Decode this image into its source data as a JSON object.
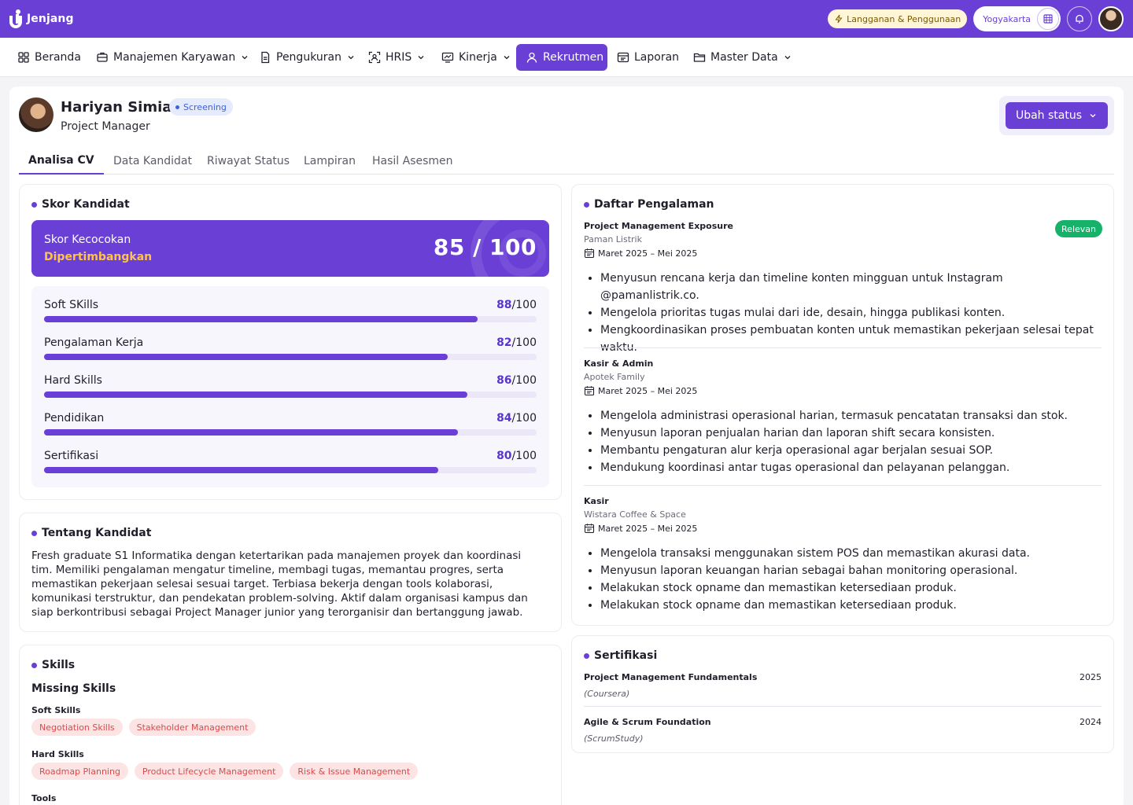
{
  "app": {
    "brand": "Jenjang"
  },
  "topbar": {
    "subscription_label": "Langganan & Penggunaan",
    "location_label": "Yogyakarta"
  },
  "nav": [
    {
      "label": "Beranda",
      "icon": "home-grid-icon",
      "dropdown": false,
      "active": false
    },
    {
      "label": "Manajemen Karyawan",
      "icon": "briefcase-icon",
      "dropdown": true,
      "active": false
    },
    {
      "label": "Pengukuran",
      "icon": "document-icon",
      "dropdown": true,
      "active": false
    },
    {
      "label": "HRIS",
      "icon": "scan-user-icon",
      "dropdown": true,
      "active": false
    },
    {
      "label": "Kinerja",
      "icon": "performance-icon",
      "dropdown": true,
      "active": false
    },
    {
      "label": "Rekrutmen",
      "icon": "user-icon",
      "dropdown": false,
      "active": true
    },
    {
      "label": "Laporan",
      "icon": "report-icon",
      "dropdown": false,
      "active": false
    },
    {
      "label": "Master Data",
      "icon": "folder-icon",
      "dropdown": true,
      "active": false
    }
  ],
  "candidate": {
    "name": "Hariyan Simiati",
    "status": "Screening",
    "role": "Project Manager",
    "change_status_label": "Ubah status"
  },
  "tabs": [
    "Analisa CV",
    "Data Kandidat",
    "Riwayat Status",
    "Lampiran",
    "Hasil Asesmen"
  ],
  "score": {
    "title": "Skor Kandidat",
    "match_label": "Skor Kecocokan",
    "verdict": "Dipertimbangkan",
    "value_text": "85 / 100",
    "metrics": [
      {
        "label": "Soft SKills",
        "score": "88",
        "max": "/100",
        "value": 88
      },
      {
        "label": "Pengalaman Kerja",
        "score": "82",
        "max": "/100",
        "value": 82
      },
      {
        "label": "Hard Skills",
        "score": "86",
        "max": "/100",
        "value": 86
      },
      {
        "label": "Pendidikan",
        "score": "84",
        "max": "/100",
        "value": 84
      },
      {
        "label": "Sertifikasi",
        "score": "80",
        "max": "/100",
        "value": 80
      }
    ]
  },
  "about": {
    "title": "Tentang Kandidat",
    "text": "Fresh graduate S1 Informatika dengan ketertarikan pada manajemen proyek dan koordinasi tim. Memiliki pengalaman mengatur timeline, membagi tugas, memantau progres, serta memastikan pekerjaan selesai sesuai target. Terbiasa bekerja dengan tools kolaborasi, komunikasi terstruktur, dan pendekatan problem-solving. Aktif dalam organisasi kampus dan siap berkontribusi sebagai Project Manager junior yang terorganisir dan bertanggung jawab."
  },
  "skills": {
    "title": "Skills",
    "missing_title": "Missing Skills",
    "soft_title": "Soft Skills",
    "soft": [
      "Negotiation Skills",
      "Stakeholder Management"
    ],
    "hard_title": "Hard Skills",
    "hard": [
      "Roadmap Planning",
      "Product Lifecycle Management",
      "Risk & Issue Management"
    ],
    "tools_title": "Tools"
  },
  "experience": {
    "title": "Daftar Pengalaman",
    "relevant_badge": "Relevan",
    "items": [
      {
        "title": "Project Management Exposure",
        "company": "Paman Listrik",
        "date": "Maret 2025 – Mei 2025",
        "bullets": [
          "Menyusun rencana kerja dan timeline konten mingguan untuk Instagram @pamanlistrik.co.",
          "Mengelola prioritas tugas mulai dari ide, desain, hingga publikasi konten.",
          "Mengkoordinasikan proses pembuatan konten untuk memastikan pekerjaan selesai tepat waktu."
        ]
      },
      {
        "title": "Kasir & Admin",
        "company": "Apotek Family",
        "date": "Maret 2025 – Mei 2025",
        "bullets": [
          "Mengelola administrasi operasional harian, termasuk pencatatan transaksi dan stok.",
          "Menyusun laporan penjualan harian dan laporan shift secara konsisten.",
          "Membantu pengaturan alur kerja operasional agar berjalan sesuai SOP.",
          "Mendukung koordinasi antar tugas operasional dan pelayanan pelanggan."
        ]
      },
      {
        "title": "Kasir",
        "company": "Wistara Coffee & Space",
        "date": "Maret 2025 – Mei 2025",
        "bullets": [
          "Mengelola transaksi menggunakan sistem POS dan memastikan akurasi data.",
          "Menyusun laporan keuangan harian sebagai bahan monitoring operasional.",
          "Melakukan stock opname dan memastikan ketersediaan produk.",
          "Melakukan stock opname dan memastikan ketersediaan produk."
        ]
      }
    ]
  },
  "certifications": {
    "title": "Sertifikasi",
    "items": [
      {
        "name": "Project Management Fundamentals",
        "org": "(Coursera)",
        "year": "2025"
      },
      {
        "name": "Agile & Scrum Foundation",
        "org": "(ScrumStudy)",
        "year": "2024"
      }
    ]
  },
  "colors": {
    "primary": "#6a3fd6",
    "accent": "#ffc24a",
    "success": "#17b26a",
    "danger": "#d94a4a"
  }
}
